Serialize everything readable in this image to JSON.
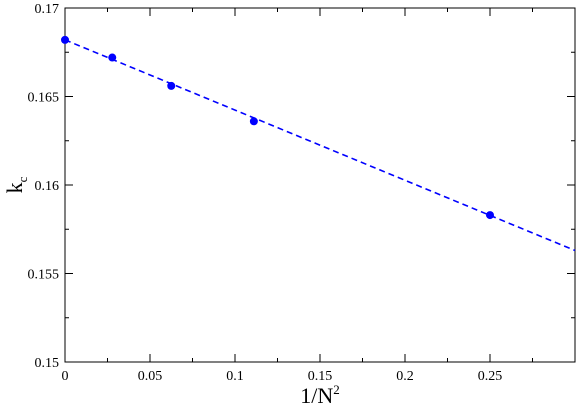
{
  "chart_data": {
    "type": "scatter",
    "title": "",
    "xlabel": {
      "text": "1/N",
      "superscript": "2"
    },
    "ylabel": {
      "text": "k",
      "subscript": "c"
    },
    "xlim": [
      0,
      0.3
    ],
    "ylim": [
      0.15,
      0.17
    ],
    "x_ticks": [
      0,
      0.05,
      0.1,
      0.15,
      0.2,
      0.25
    ],
    "x_tick_labels": [
      "0",
      "0.05",
      "0.1",
      "0.15",
      "0.2",
      "0.25"
    ],
    "y_ticks": [
      0.15,
      0.155,
      0.16,
      0.165,
      0.17
    ],
    "y_tick_labels": [
      "0.15",
      "0.155",
      "0.16",
      "0.165",
      "0.17"
    ],
    "grid": false,
    "series": [
      {
        "kind": "points",
        "color": "#0000ff",
        "x": [
          0,
          0.0278,
          0.0625,
          0.1111,
          0.25
        ],
        "y": [
          0.1682,
          0.1672,
          0.1656,
          0.1636,
          0.1583
        ]
      },
      {
        "kind": "fit-line",
        "style": "dashed",
        "color": "#0000ff",
        "x": [
          0,
          0.3
        ],
        "y": [
          0.1682,
          0.1563
        ]
      }
    ]
  }
}
